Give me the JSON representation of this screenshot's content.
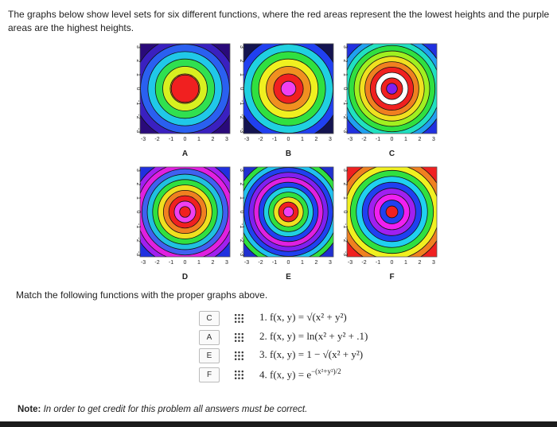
{
  "intro": "The graphs below show level sets for six different functions, where the red areas represent the the lowest heights and the purple areas are the highest heights.",
  "axis_ticks": [
    "-3",
    "-2",
    "-1",
    "0",
    "1",
    "2",
    "3"
  ],
  "graphs": [
    {
      "label": "A"
    },
    {
      "label": "B"
    },
    {
      "label": "C"
    },
    {
      "label": "D"
    },
    {
      "label": "E"
    },
    {
      "label": "F"
    }
  ],
  "prompt": "Match the following functions with the proper graphs above.",
  "matches": [
    {
      "answer": "C",
      "formula": "1. f(x, y) = √(x² + y²)"
    },
    {
      "answer": "A",
      "formula": "2. f(x, y) = ln(x² + y² + .1)"
    },
    {
      "answer": "E",
      "formula": "3. f(x, y) = 1 − √(x² + y²)"
    },
    {
      "answer": "F",
      "formula": "4. f(x, y) = e",
      "exponent": "−(x²+y²)/2"
    }
  ],
  "note": {
    "label": "Note:",
    "text": "In order to get credit for this problem all answers must be correct."
  }
}
